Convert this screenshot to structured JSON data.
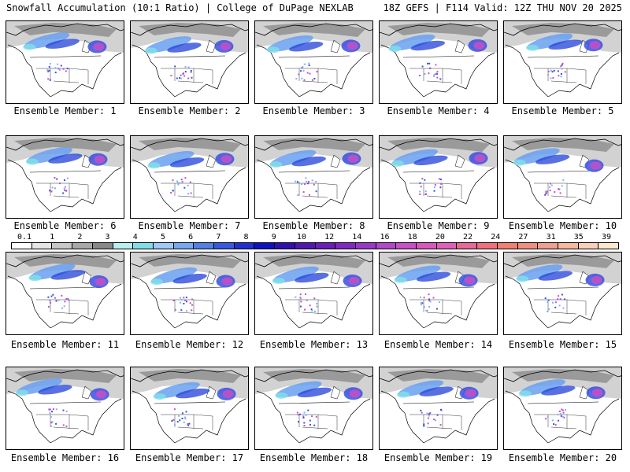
{
  "header": {
    "left": "Snowfall Accumulation (10:1 Ratio) | College of DuPage NEXLAB",
    "right": "18Z GEFS | F114 Valid: 12Z THU NOV 20 2025"
  },
  "panels": [
    {
      "label": "Ensemble Member: 1"
    },
    {
      "label": "Ensemble Member: 2"
    },
    {
      "label": "Ensemble Member: 3"
    },
    {
      "label": "Ensemble Member: 4"
    },
    {
      "label": "Ensemble Member: 5"
    },
    {
      "label": "Ensemble Member: 6"
    },
    {
      "label": "Ensemble Member: 7"
    },
    {
      "label": "Ensemble Member: 8"
    },
    {
      "label": "Ensemble Member: 9"
    },
    {
      "label": "Ensemble Member: 10"
    },
    {
      "label": "Ensemble Member: 11"
    },
    {
      "label": "Ensemble Member: 12"
    },
    {
      "label": "Ensemble Member: 13"
    },
    {
      "label": "Ensemble Member: 14"
    },
    {
      "label": "Ensemble Member: 15"
    },
    {
      "label": "Ensemble Member: 16"
    },
    {
      "label": "Ensemble Member: 17"
    },
    {
      "label": "Ensemble Member: 18"
    },
    {
      "label": "Ensemble Member: 19"
    },
    {
      "label": "Ensemble Member: 20"
    }
  ],
  "colorbar": {
    "ticks": [
      "0.1",
      "1",
      "2",
      "3",
      "4",
      "5",
      "6",
      "7",
      "8",
      "9",
      "10",
      "12",
      "14",
      "16",
      "18",
      "20",
      "22",
      "24",
      "27",
      "31",
      "35",
      "39"
    ],
    "colors": [
      "#ffffff",
      "#e6e6e6",
      "#c8c8c8",
      "#a8a8a8",
      "#888888",
      "#b8f0f0",
      "#80e0e8",
      "#a0c8f8",
      "#78a8f0",
      "#5080e8",
      "#3858e0",
      "#2030d0",
      "#1010c0",
      "#3010b0",
      "#5018b0",
      "#6820b8",
      "#8028c0",
      "#9838c8",
      "#b048c8",
      "#c850c8",
      "#d858c0",
      "#e060b8",
      "#e86898",
      "#f07080",
      "#f08070",
      "#f09080",
      "#f0a090",
      "#f8b8a0",
      "#f8d0b8",
      "#fce8d0"
    ]
  }
}
